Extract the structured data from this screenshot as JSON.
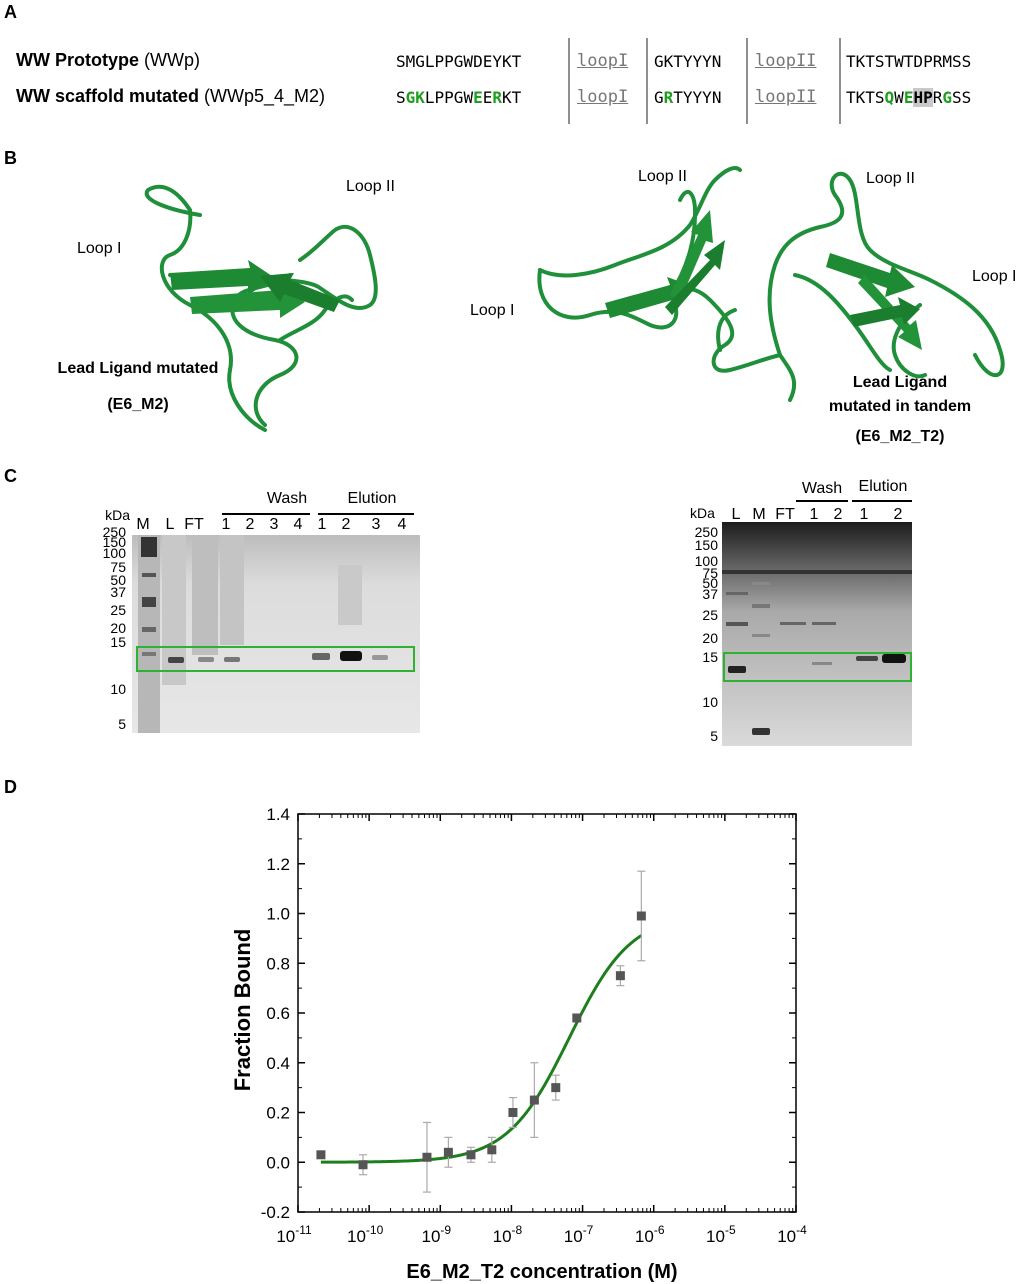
{
  "panels": {
    "a": "A",
    "b": "B",
    "c": "C",
    "d": "D"
  },
  "panel_a": {
    "row1": {
      "name_bold": "WW Prototype",
      "name_rest": " (WWp)",
      "seg1": [
        {
          "t": "SMGLPPGWDEYKT"
        }
      ],
      "loop1": "loopI",
      "seg2": [
        {
          "t": "GKTYYYN"
        }
      ],
      "loop2": "loopII",
      "seg3": [
        {
          "t": "TKTSTWTDPRMSS"
        }
      ]
    },
    "row2": {
      "name_bold": "WW scaffold mutated",
      "name_rest": " (WWp5_4_M2)",
      "seg1": [
        {
          "t": "S"
        },
        {
          "t": "GK",
          "g": true
        },
        {
          "t": "LPPGW"
        },
        {
          "t": "E",
          "g": true
        },
        {
          "t": "E"
        },
        {
          "t": "R",
          "g": true
        },
        {
          "t": "KT"
        }
      ],
      "loop1": "loopI",
      "seg2": [
        {
          "t": "G"
        },
        {
          "t": "R",
          "g": true
        },
        {
          "t": "TYYYN"
        }
      ],
      "loop2": "loopII",
      "seg3": [
        {
          "t": "TKTS"
        },
        {
          "t": "Q",
          "g": true
        },
        {
          "t": "W"
        },
        {
          "t": "E",
          "g": true
        },
        {
          "t": "HP",
          "h": true
        },
        {
          "t": "R"
        },
        {
          "t": "G",
          "g": true
        },
        {
          "t": "SS"
        }
      ]
    }
  },
  "panel_b": {
    "left": {
      "loop1": "Loop I",
      "loop2": "Loop II",
      "caption1": "Lead Ligand mutated",
      "caption2": "(E6_M2)"
    },
    "right": {
      "loop1_left": "Loop I",
      "loop2_left": "Loop II",
      "loop2_right": "Loop II",
      "loop1_right": "Loop I",
      "caption1": "Lead Ligand",
      "caption2": "mutated in tandem",
      "caption3": "(E6_M2_T2)"
    }
  },
  "panel_c": {
    "gel1": {
      "kda_label": "kDa",
      "markers": [
        "250",
        "150",
        "100",
        "75",
        "50",
        "37",
        "25",
        "20",
        "15",
        "10",
        "5"
      ],
      "lanes": [
        "M",
        "L",
        "FT",
        "1",
        "2",
        "3",
        "4",
        "1",
        "2",
        "3",
        "4"
      ],
      "wash": "Wash",
      "elution": "Elution"
    },
    "gel2": {
      "kda_label": "kDa",
      "markers": [
        "250",
        "150",
        "100",
        "75",
        "50",
        "37",
        "25",
        "20",
        "15",
        "10",
        "5"
      ],
      "lanes": [
        "L",
        "M",
        "FT",
        "1",
        "2",
        "1",
        "2"
      ],
      "wash": "Wash",
      "elution": "Elution"
    }
  },
  "chart_data": {
    "type": "scatter",
    "title": "",
    "xlabel": "E6_M2_T2 concentration (M)",
    "ylabel": "Fraction Bound",
    "x_scale": "log",
    "xlim": [
      1e-11,
      0.0001
    ],
    "ylim": [
      -0.2,
      1.4
    ],
    "x_ticks": [
      "10",
      "10",
      "10",
      "10",
      "10",
      "10",
      "10",
      "10"
    ],
    "x_tick_exponents": [
      "-11",
      "-10",
      "-9",
      "-8",
      "-7",
      "-6",
      "-5",
      "-4"
    ],
    "y_ticks": [
      "-0.2",
      "0.0",
      "0.2",
      "0.4",
      "0.6",
      "0.8",
      "1.0",
      "1.2",
      "1.4"
    ],
    "series": [
      {
        "points": [
          {
            "x": 2.1e-11,
            "y": 0.03,
            "err": 0.0
          },
          {
            "x": 8.2e-11,
            "y": -0.01,
            "err": 0.04
          },
          {
            "x": 6.5e-10,
            "y": 0.02,
            "err": 0.14
          },
          {
            "x": 1.3e-09,
            "y": 0.04,
            "err": 0.06
          },
          {
            "x": 2.7e-09,
            "y": 0.03,
            "err": 0.03
          },
          {
            "x": 5.3e-09,
            "y": 0.05,
            "err": 0.05
          },
          {
            "x": 1.05e-08,
            "y": 0.2,
            "err": 0.06
          },
          {
            "x": 2.1e-08,
            "y": 0.25,
            "err": 0.15
          },
          {
            "x": 4.2e-08,
            "y": 0.3,
            "err": 0.05
          },
          {
            "x": 8.3e-08,
            "y": 0.58,
            "err": 0.0
          },
          {
            "x": 3.4e-07,
            "y": 0.75,
            "err": 0.04
          },
          {
            "x": 6.7e-07,
            "y": 0.99,
            "err": 0.18
          }
        ]
      }
    ],
    "fit": {
      "type": "hill",
      "kd": 6.5e-08,
      "n": 1.0,
      "bottom": 0.0,
      "top": 1.0,
      "x_range": [
        2.1e-11,
        6.7e-07
      ]
    },
    "colors": {
      "fit": "#1c7f1c",
      "points": "#555555",
      "errorbars": "#aaaaaa"
    }
  }
}
